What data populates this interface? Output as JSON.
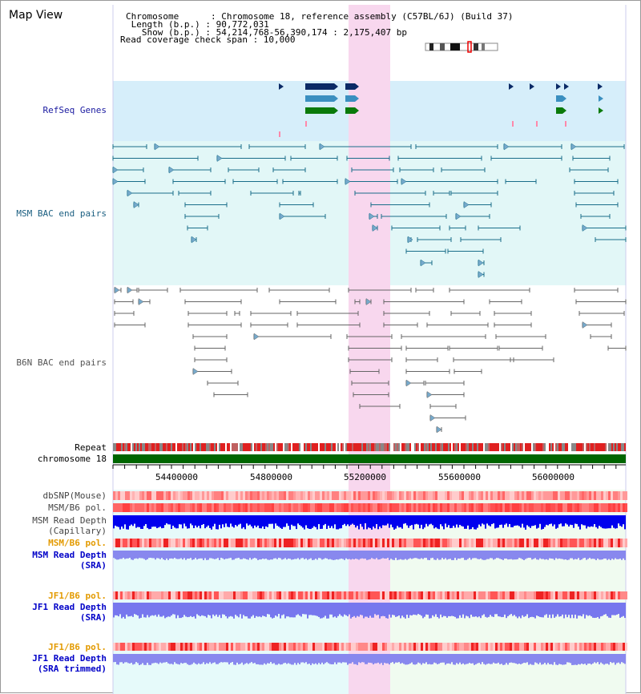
{
  "view": {
    "title": "Map View",
    "header": {
      "chromosome": "Chromosome      : Chromosome 18, reference assembly (C57BL/6J) (Build 37)",
      "length": " Length (b.p.) : 90,772,031",
      "show": "   Show (b.p.) : 54,214,768-56,390,174 : 2,175,407 bp",
      "coverage": "Read coverage check span : 10,000"
    }
  },
  "tracks": {
    "refseq": "RefSeq Genes",
    "msm_bac": "MSM BAC end pairs",
    "b6n_bac": "B6N BAC end pairs",
    "repeat": "Repeat",
    "chromosome": "chromosome 18",
    "dbsnp": "dbSNP(Mouse)",
    "msm_pol_1": "MSM/B6 pol.",
    "msm_depth_cap_1": "MSM Read Depth",
    "msm_depth_cap_2": "(Capillary)",
    "msm_pol_2": "MSM/B6 pol.",
    "msm_depth_sra_1": "MSM Read Depth",
    "msm_depth_sra_2": "(SRA)",
    "jf1_pol_1": "JF1/B6 pol.",
    "jf1_depth_sra_1": "JF1 Read Depth",
    "jf1_depth_sra_2": "(SRA)",
    "jf1_pol_2": "JF1/B6 pol.",
    "jf1_depth_trim_1": "JF1 Read Depth",
    "jf1_depth_trim_2": "(SRA trimmed)"
  },
  "axis": {
    "ticks": [
      "54400000",
      "54800000",
      "55200000",
      "55600000",
      "56000000"
    ]
  },
  "colors": {
    "refseq_label": "#1a1aa0",
    "msm_label": "#1a5e80",
    "b6n_label": "#555555",
    "orange_label": "#e39a00",
    "blue_label": "#0000c8",
    "highlight": "#f8d7ee",
    "refseq_bg": "#d6eefa",
    "msm_bg": "#e2f7f7",
    "green_chrom": "#006600"
  }
}
